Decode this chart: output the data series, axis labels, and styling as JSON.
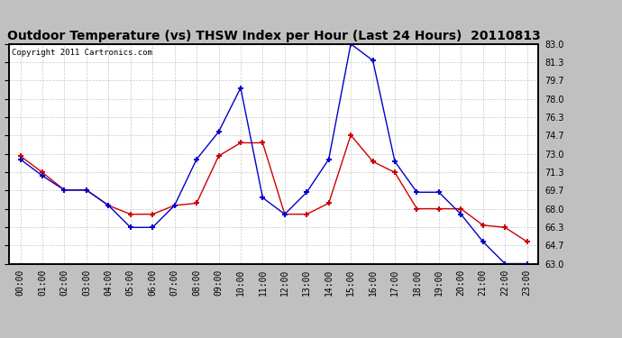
{
  "title": "Outdoor Temperature (vs) THSW Index per Hour (Last 24 Hours)  20110813",
  "copyright": "Copyright 2011 Cartronics.com",
  "hours": [
    "00:00",
    "01:00",
    "02:00",
    "03:00",
    "04:00",
    "05:00",
    "06:00",
    "07:00",
    "08:00",
    "09:00",
    "10:00",
    "11:00",
    "12:00",
    "13:00",
    "14:00",
    "15:00",
    "16:00",
    "17:00",
    "18:00",
    "19:00",
    "20:00",
    "21:00",
    "22:00",
    "23:00"
  ],
  "temp_red": [
    72.8,
    71.3,
    69.7,
    69.7,
    68.3,
    67.5,
    67.5,
    68.3,
    68.5,
    72.8,
    74.0,
    74.0,
    67.5,
    67.5,
    68.5,
    74.7,
    72.3,
    71.3,
    68.0,
    68.0,
    68.0,
    66.5,
    66.3,
    65.0
  ],
  "thsw_blue": [
    72.5,
    71.0,
    69.7,
    69.7,
    68.3,
    66.3,
    66.3,
    68.3,
    72.5,
    75.0,
    79.0,
    69.0,
    67.5,
    69.5,
    72.5,
    83.0,
    81.5,
    72.3,
    69.5,
    69.5,
    67.5,
    65.0,
    63.0,
    63.0
  ],
  "ylim_min": 63.0,
  "ylim_max": 83.0,
  "yticks": [
    63.0,
    64.7,
    66.3,
    68.0,
    69.7,
    71.3,
    73.0,
    74.7,
    76.3,
    78.0,
    79.7,
    81.3,
    83.0
  ],
  "red_color": "#cc0000",
  "blue_color": "#0000cc",
  "grid_color": "#c8c8c8",
  "bg_color": "#ffffff",
  "outer_bg": "#c0c0c0",
  "title_color": "#000000",
  "copyright_color": "#000000",
  "marker_size": 5,
  "title_fontsize": 10,
  "copyright_fontsize": 6.5,
  "tick_fontsize": 7,
  "ytick_fontsize": 7
}
